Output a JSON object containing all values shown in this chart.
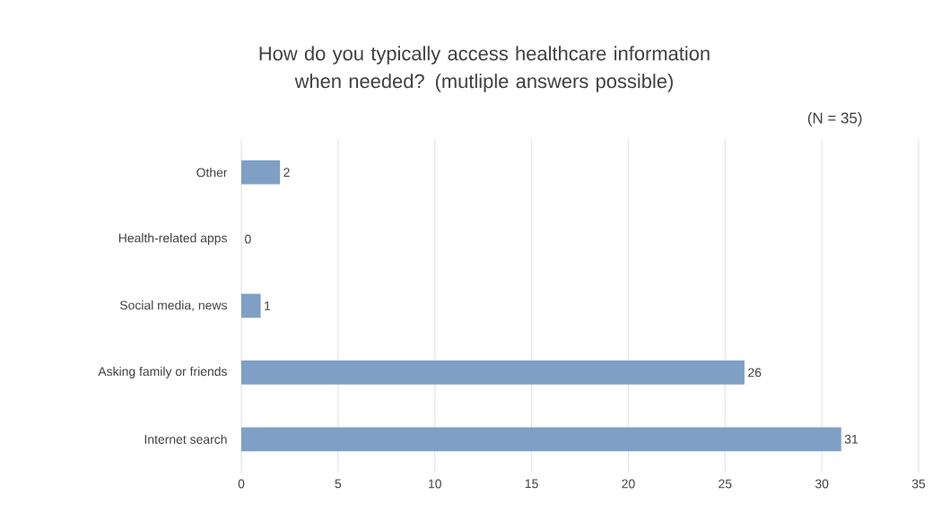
{
  "chart_data": {
    "type": "bar",
    "orientation": "horizontal",
    "title": "How do you typically access healthcare information when needed? (mutliple answers possible)",
    "annotations": [
      "(N = 35)"
    ],
    "categories": [
      "Other",
      "Health-related apps",
      "Social media, news",
      "Asking family or friends",
      "Internet search"
    ],
    "values": [
      2,
      0,
      1,
      26,
      31
    ],
    "color": "#7f9fc5",
    "xlim": [
      0,
      35
    ],
    "xticks": [
      0,
      5,
      10,
      15,
      20,
      25,
      30,
      35
    ],
    "grid": "x",
    "data_labels": true
  }
}
